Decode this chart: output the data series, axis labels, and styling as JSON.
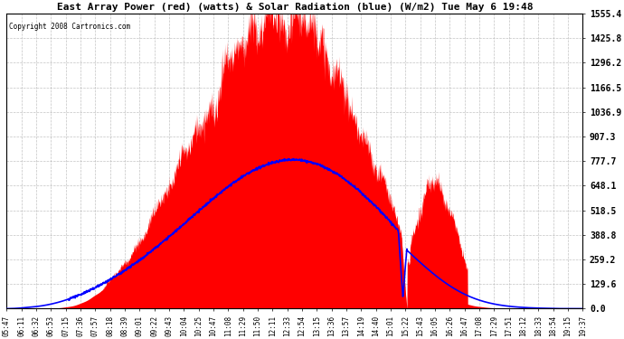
{
  "title": "East Array Power (red) (watts) & Solar Radiation (blue) (W/m2) Tue May 6 19:48",
  "copyright": "Copyright 2008 Cartronics.com",
  "y_ticks": [
    0.0,
    129.6,
    259.2,
    388.8,
    518.5,
    648.1,
    777.7,
    907.3,
    1036.9,
    1166.5,
    1296.2,
    1425.8,
    1555.4
  ],
  "y_max": 1555.4,
  "y_min": 0.0,
  "background_color": "#ffffff",
  "plot_bg_color": "#ffffff",
  "grid_color": "#aaaaaa",
  "fill_color": "#ff0000",
  "line_color": "#0000ff",
  "x_labels": [
    "05:47",
    "06:11",
    "06:32",
    "06:53",
    "07:15",
    "07:36",
    "07:57",
    "08:18",
    "08:39",
    "09:01",
    "09:22",
    "09:43",
    "10:04",
    "10:25",
    "10:47",
    "11:08",
    "11:29",
    "11:50",
    "12:11",
    "12:33",
    "12:54",
    "13:15",
    "13:36",
    "13:57",
    "14:19",
    "14:40",
    "15:01",
    "15:22",
    "15:43",
    "16:05",
    "16:26",
    "16:47",
    "17:08",
    "17:29",
    "17:51",
    "18:12",
    "18:33",
    "18:54",
    "19:15",
    "19:37"
  ]
}
